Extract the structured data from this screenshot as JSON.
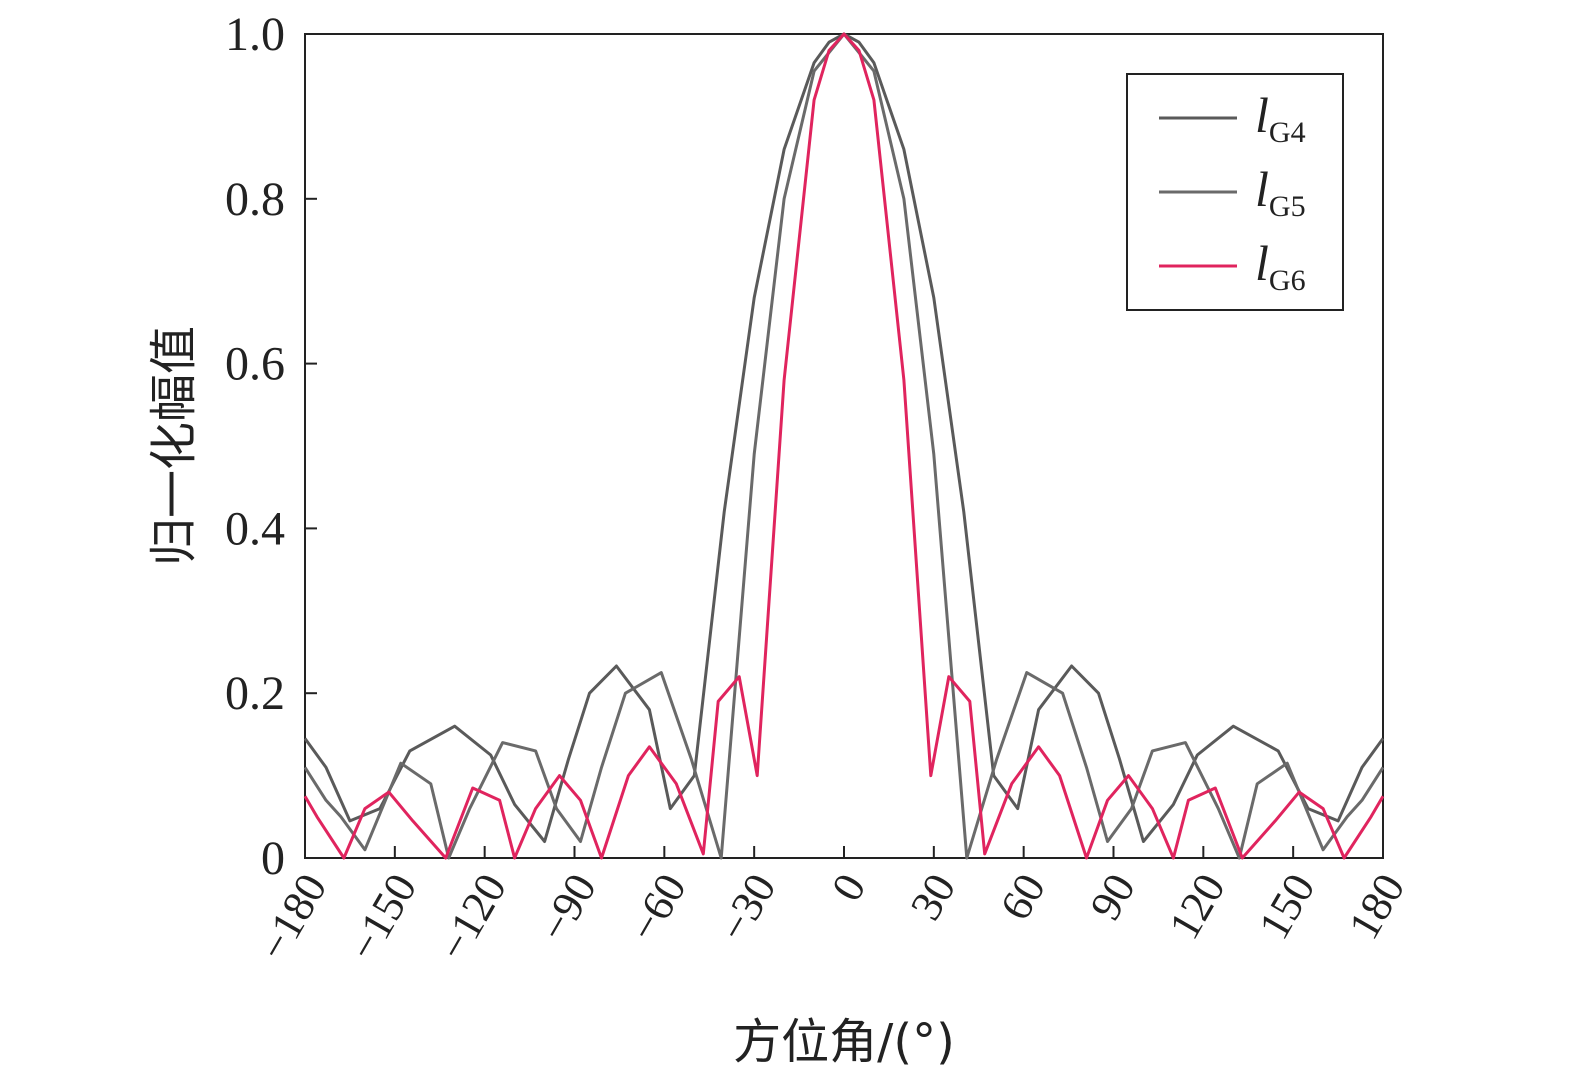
{
  "chart_data": {
    "type": "line",
    "xlabel": "方位角/(°)",
    "ylabel": "归一化幅值",
    "xlim": [
      -180,
      180
    ],
    "ylim": [
      0,
      1.0
    ],
    "x_ticks": [
      "−180",
      "−150",
      "−120",
      "−90",
      "−60",
      "−30",
      "0",
      "30",
      "60",
      "90",
      "120",
      "150",
      "180"
    ],
    "x_tick_values": [
      -180,
      -150,
      -120,
      -90,
      -60,
      -30,
      0,
      30,
      60,
      90,
      120,
      150,
      180
    ],
    "y_ticks": [
      "0",
      "0.2",
      "0.4",
      "0.6",
      "0.8",
      "1.0"
    ],
    "y_tick_values": [
      0,
      0.2,
      0.4,
      0.6,
      0.8,
      1.0
    ],
    "grid": false,
    "legend_position": "top-right",
    "series": [
      {
        "name": "G4",
        "name_prefix": "l",
        "name_sub": "G4",
        "color": "#5a5a5a",
        "x": [
          -180,
          -173,
          -165,
          -155,
          -145,
          -130,
          -118,
          -110,
          -100,
          -92,
          -85,
          -76,
          -65,
          -58,
          -50,
          -40,
          -30,
          -20,
          -10,
          -5,
          0,
          5,
          10,
          20,
          30,
          40,
          50,
          58,
          65,
          76,
          85,
          92,
          100,
          110,
          118,
          130,
          145,
          155,
          165,
          173,
          180
        ],
        "y": [
          0.145,
          0.11,
          0.045,
          0.06,
          0.13,
          0.16,
          0.125,
          0.065,
          0.02,
          0.12,
          0.2,
          0.233,
          0.18,
          0.06,
          0.1,
          0.42,
          0.68,
          0.86,
          0.965,
          0.99,
          1.0,
          0.99,
          0.965,
          0.86,
          0.68,
          0.42,
          0.1,
          0.06,
          0.18,
          0.233,
          0.2,
          0.12,
          0.02,
          0.065,
          0.125,
          0.16,
          0.13,
          0.06,
          0.045,
          0.11,
          0.145
        ]
      },
      {
        "name": "G5",
        "name_prefix": "l",
        "name_sub": "G5",
        "color": "#6a6a6a",
        "x": [
          -180,
          -173,
          -168,
          -160,
          -148,
          -138,
          -132,
          -125,
          -114,
          -103,
          -96,
          -88,
          -81,
          -73,
          -61,
          -51,
          -41,
          -30,
          -20,
          -10,
          0,
          10,
          20,
          30,
          41,
          51,
          61,
          73,
          81,
          88,
          96,
          103,
          114,
          125,
          132,
          138,
          148,
          160,
          168,
          173,
          180
        ],
        "y": [
          0.11,
          0.07,
          0.05,
          0.01,
          0.115,
          0.09,
          0.0,
          0.06,
          0.14,
          0.13,
          0.06,
          0.02,
          0.11,
          0.2,
          0.225,
          0.12,
          0.0,
          0.49,
          0.8,
          0.955,
          1.0,
          0.955,
          0.8,
          0.49,
          0.0,
          0.12,
          0.225,
          0.2,
          0.11,
          0.02,
          0.06,
          0.13,
          0.14,
          0.06,
          0.0,
          0.09,
          0.115,
          0.01,
          0.05,
          0.07,
          0.11
        ]
      },
      {
        "name": "G6",
        "name_prefix": "l",
        "name_sub": "G6",
        "color": "#e0245e",
        "x": [
          -180,
          -176,
          -167,
          -160,
          -152,
          -144,
          -133,
          -124,
          -115,
          -110,
          -103,
          -95,
          -88,
          -81,
          -72,
          -65,
          -56,
          -47,
          -42,
          -35,
          -29,
          -20,
          -10,
          -5,
          0,
          5,
          10,
          20,
          29,
          35,
          42,
          47,
          56,
          65,
          72,
          81,
          88,
          95,
          103,
          110,
          115,
          124,
          133,
          144,
          152,
          160,
          167,
          176,
          180
        ],
        "y": [
          0.075,
          0.05,
          0.0,
          0.06,
          0.08,
          0.045,
          0.0,
          0.085,
          0.07,
          0.0,
          0.06,
          0.1,
          0.07,
          0.0,
          0.1,
          0.135,
          0.09,
          0.005,
          0.19,
          0.22,
          0.1,
          0.58,
          0.92,
          0.98,
          1.0,
          0.98,
          0.92,
          0.58,
          0.1,
          0.22,
          0.19,
          0.005,
          0.09,
          0.135,
          0.1,
          0.0,
          0.07,
          0.1,
          0.06,
          0.0,
          0.07,
          0.085,
          0.0,
          0.045,
          0.08,
          0.06,
          0.0,
          0.05,
          0.075
        ]
      }
    ]
  }
}
